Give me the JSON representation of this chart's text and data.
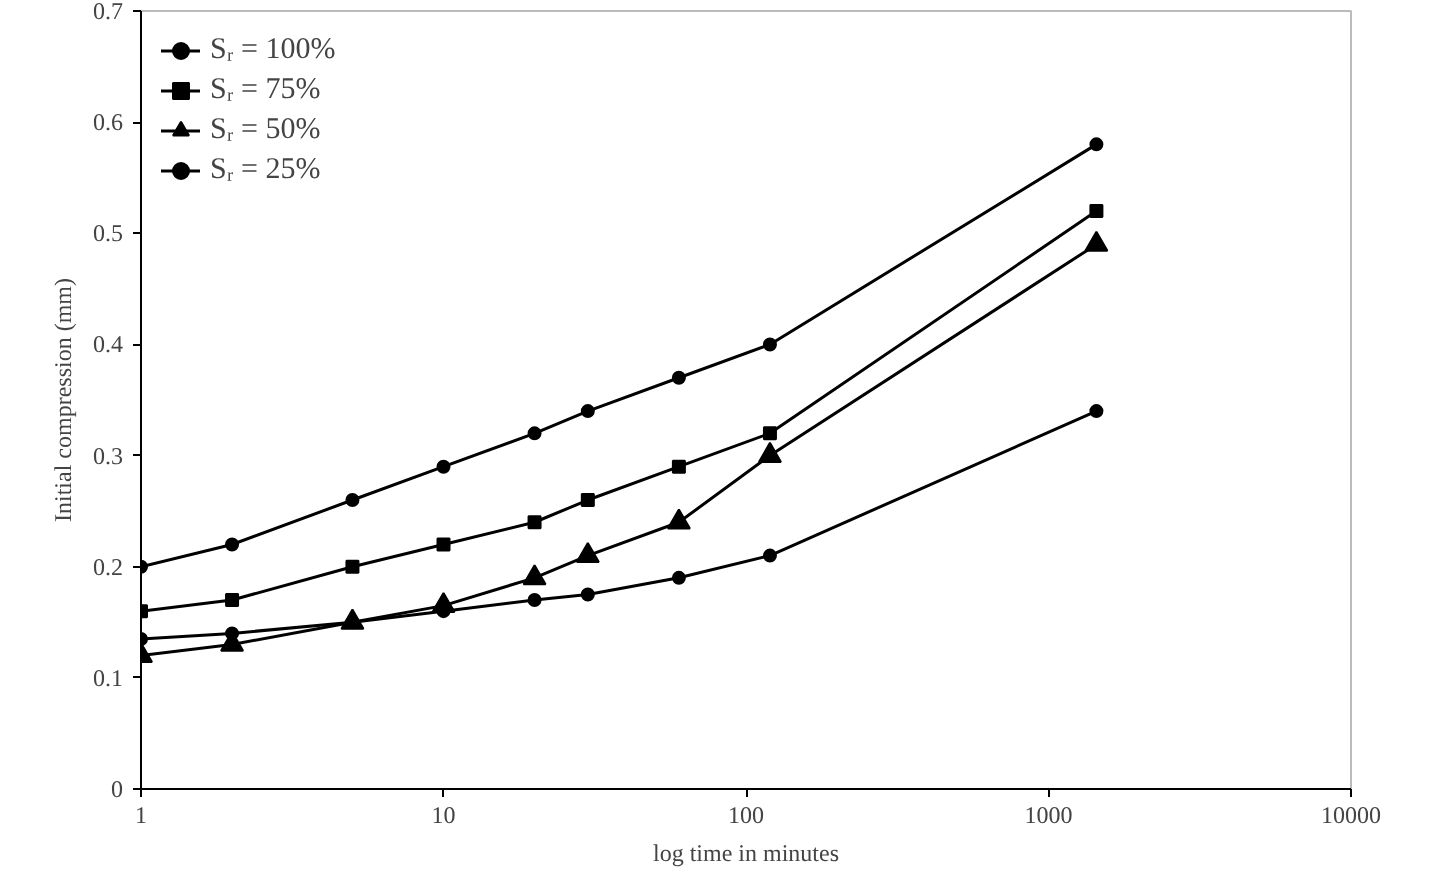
{
  "chart_data": {
    "type": "line",
    "xlabel": "log time in minutes",
    "ylabel": "Initial compression (mm)",
    "log": "x",
    "xlim": [
      1,
      10000
    ],
    "xticks": [
      1,
      10,
      100,
      1000,
      10000
    ],
    "ylim": [
      0,
      0.7
    ],
    "yticks": [
      0,
      0.1,
      0.2,
      0.3,
      0.4,
      0.5,
      0.6,
      0.7
    ],
    "grid": false,
    "legend": "top left",
    "x": [
      1,
      2,
      5,
      10,
      20,
      30,
      60,
      120,
      1440
    ],
    "series": [
      {
        "name": "Sᵣ = 100%",
        "color": "#000000",
        "marker": "circle",
        "values": [
          0.2,
          0.22,
          0.26,
          0.29,
          0.32,
          0.34,
          0.37,
          0.4,
          0.58
        ]
      },
      {
        "name": "Sᵣ = 75%",
        "color": "#000000",
        "marker": "square",
        "values": [
          0.16,
          0.17,
          0.2,
          0.22,
          0.24,
          0.26,
          0.29,
          0.32,
          0.52
        ]
      },
      {
        "name": "Sᵣ = 50%",
        "color": "#000000",
        "marker": "triangle",
        "values": [
          0.12,
          0.13,
          0.15,
          0.165,
          0.19,
          0.21,
          0.24,
          0.3,
          0.49
        ]
      },
      {
        "name": "Sᵣ = 25%",
        "color": "#000000",
        "marker": "circle",
        "values": [
          0.135,
          0.14,
          0.15,
          0.16,
          0.17,
          0.175,
          0.19,
          0.21,
          0.34
        ]
      }
    ]
  }
}
